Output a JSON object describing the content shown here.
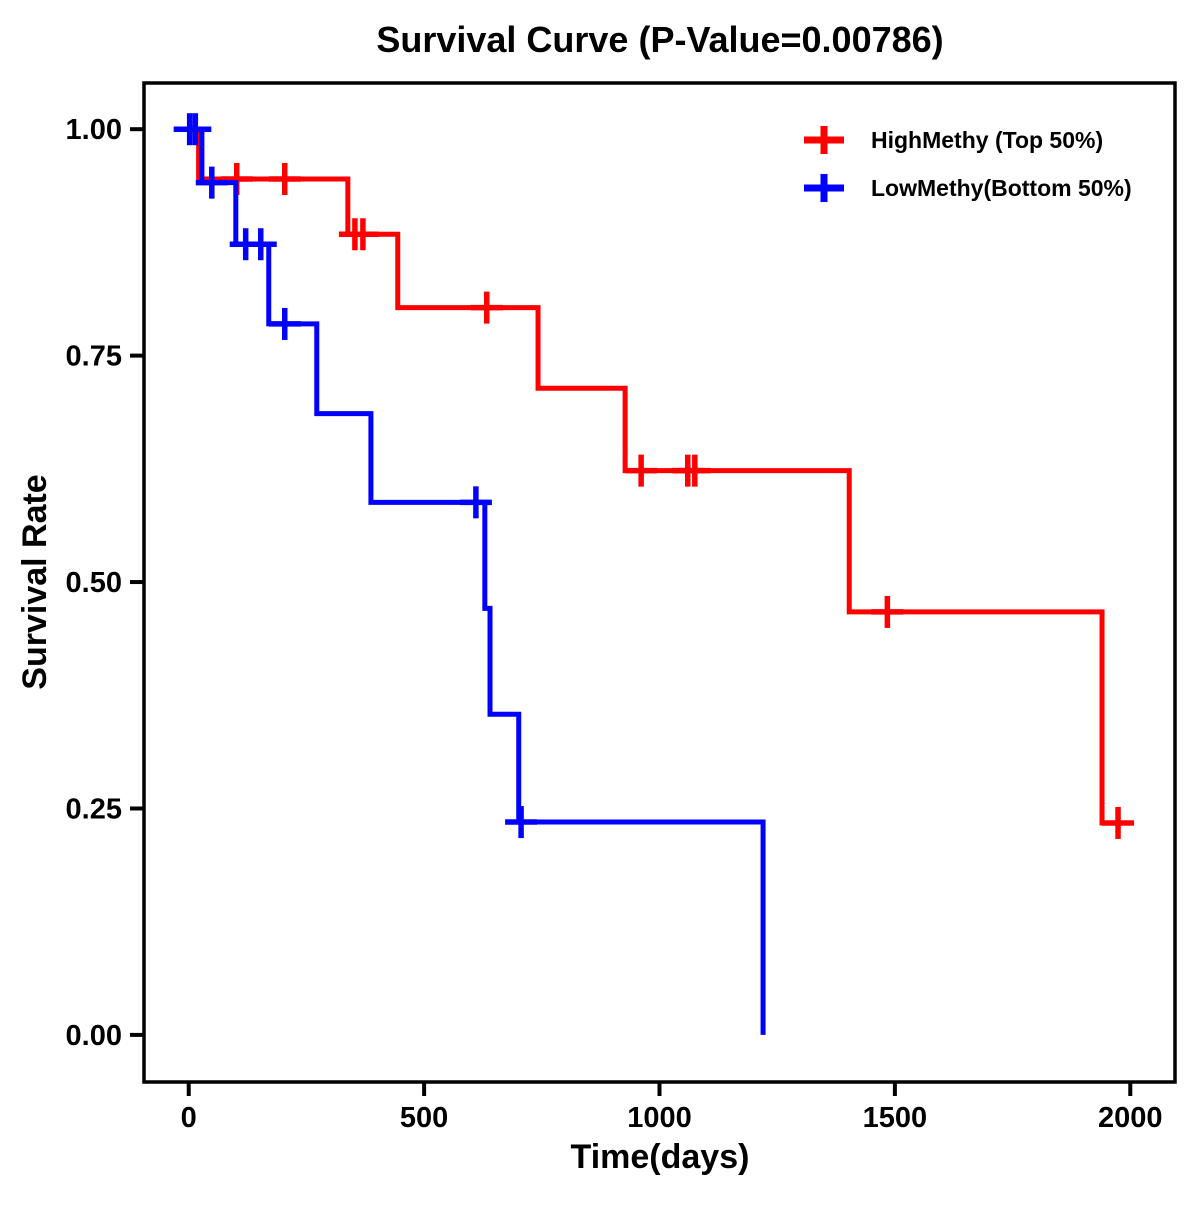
{
  "title": "Survival Curve (P-Value=0.00786)",
  "p_value": "0.00786",
  "chart_data": {
    "type": "line",
    "subtype": "kaplan-meier-step-curve",
    "title": "Survival Curve (P-Value=0.00786)",
    "xlabel": "Time(days)",
    "ylabel": "Survival Rate",
    "grid": false,
    "legend_position": "top-right",
    "xlim": [
      -95,
      2095
    ],
    "ylim": [
      -0.052,
      1.051
    ],
    "xticks": [
      {
        "value": 0,
        "label": "0"
      },
      {
        "value": 500,
        "label": "500"
      },
      {
        "value": 1000,
        "label": "1000"
      },
      {
        "value": 1500,
        "label": "1500"
      },
      {
        "value": 2000,
        "label": "2000"
      }
    ],
    "yticks": [
      {
        "value": 0.0,
        "label": "0.00"
      },
      {
        "value": 0.25,
        "label": "0.25"
      },
      {
        "value": 0.5,
        "label": "0.50"
      },
      {
        "value": 0.75,
        "label": "0.75"
      },
      {
        "value": 1.0,
        "label": "1.00"
      }
    ],
    "series": [
      {
        "name": "HighMethy (Top 50%)",
        "color": "#ff0000",
        "start_time": 0,
        "start_survival": 1.0,
        "end_time": 2005,
        "steps": [
          {
            "t": 21,
            "s": 0.945
          },
          {
            "t": 338,
            "s": 0.884
          },
          {
            "t": 444,
            "s": 0.803
          },
          {
            "t": 742,
            "s": 0.714
          },
          {
            "t": 927,
            "s": 0.623
          },
          {
            "t": 1403,
            "s": 0.467
          },
          {
            "t": 1940,
            "s": 0.234
          }
        ],
        "censors": [
          {
            "t": 102,
            "s": 0.945
          },
          {
            "t": 204,
            "s": 0.945
          },
          {
            "t": 353,
            "s": 0.884
          },
          {
            "t": 370,
            "s": 0.884
          },
          {
            "t": 633,
            "s": 0.803
          },
          {
            "t": 961,
            "s": 0.623
          },
          {
            "t": 1060,
            "s": 0.623
          },
          {
            "t": 1075,
            "s": 0.623
          },
          {
            "t": 1484,
            "s": 0.467
          },
          {
            "t": 1974,
            "s": 0.234
          }
        ]
      },
      {
        "name": "LowMethy(Bottom 50%)",
        "color": "#0000ff",
        "start_time": 0,
        "start_survival": 1.0,
        "end_time": 1220,
        "steps": [
          {
            "t": 28,
            "s": 0.941
          },
          {
            "t": 100,
            "s": 0.873
          },
          {
            "t": 170,
            "s": 0.785
          },
          {
            "t": 272,
            "s": 0.686
          },
          {
            "t": 387,
            "s": 0.588
          },
          {
            "t": 629,
            "s": 0.471
          },
          {
            "t": 640,
            "s": 0.354
          },
          {
            "t": 701,
            "s": 0.235
          },
          {
            "t": 1220,
            "s": 0.0
          }
        ],
        "censors": [
          {
            "t": 2,
            "s": 1.0
          },
          {
            "t": 14,
            "s": 1.0
          },
          {
            "t": 49,
            "s": 0.941
          },
          {
            "t": 121,
            "s": 0.873
          },
          {
            "t": 153,
            "s": 0.873
          },
          {
            "t": 204,
            "s": 0.785
          },
          {
            "t": 610,
            "s": 0.588
          },
          {
            "t": 706,
            "s": 0.235
          }
        ]
      }
    ]
  }
}
